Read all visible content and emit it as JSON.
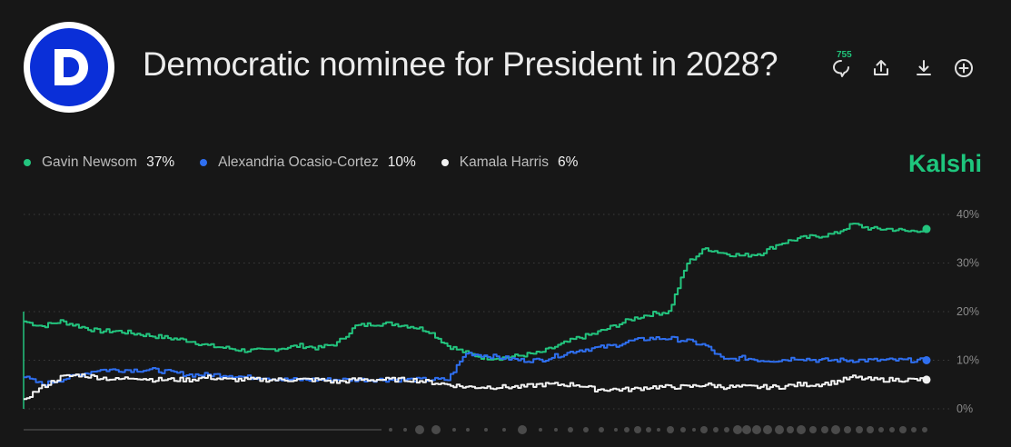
{
  "header": {
    "title": "Democratic nominee for President in 2028?",
    "comment_count": "755",
    "logo_letter": "D",
    "icons": [
      "comment-icon",
      "share-icon",
      "download-icon",
      "add-icon"
    ]
  },
  "brand": "Kalshi",
  "colors": {
    "newsom": "#23c47e",
    "aoc": "#2f6ff0",
    "harris": "#f2f2f2",
    "brand": "#1ec67d",
    "logo": "#0a2fd8"
  },
  "chart_data": {
    "type": "line",
    "ylim": [
      0,
      40
    ],
    "y_ticks": [
      40,
      30,
      20,
      10,
      0
    ],
    "y_tick_labels": [
      "40%",
      "30%",
      "20%",
      "10%",
      "0%"
    ],
    "grid": true,
    "legend_position": "top-left",
    "series": [
      {
        "name": "Gavin Newsom",
        "label": "37%",
        "color": "#23c47e",
        "values": [
          18,
          17,
          18,
          17,
          16,
          16,
          15.5,
          15,
          14.5,
          14,
          13,
          12.5,
          12,
          12,
          12.5,
          13,
          12.5,
          13.5,
          17,
          17.5,
          17.5,
          17,
          16,
          13,
          11.5,
          10.5,
          10.5,
          11,
          11.5,
          13,
          14.5,
          15.5,
          17,
          18.5,
          19.5,
          20,
          30,
          33,
          32,
          31.5,
          32,
          34,
          35,
          35.5,
          36,
          38,
          37,
          37,
          36.5,
          37
        ]
      },
      {
        "name": "Alexandria Ocasio-Cortez",
        "label": "10%",
        "color": "#2f6ff0",
        "values": [
          6.5,
          5,
          6,
          7,
          8,
          8,
          8,
          8,
          7.5,
          7,
          7,
          7,
          6.5,
          6.5,
          6,
          6,
          6,
          6,
          6,
          6,
          6,
          6,
          6,
          6,
          11.5,
          11,
          10.5,
          10,
          10,
          11,
          12,
          12.5,
          13,
          14,
          14.5,
          14.5,
          14,
          13,
          10,
          10.5,
          10,
          10,
          10.5,
          10,
          10,
          10,
          10,
          10,
          10,
          10
        ]
      },
      {
        "name": "Kamala Harris",
        "label": "6%",
        "color": "#f2f2f2",
        "values": [
          2,
          4.5,
          6.5,
          7,
          6.5,
          6,
          6.5,
          6,
          6,
          6,
          6.5,
          6,
          6,
          6,
          6,
          6,
          6,
          5.5,
          6,
          6,
          6,
          6,
          5.5,
          5,
          4.5,
          4.5,
          4.5,
          4.5,
          5,
          5,
          5,
          4,
          4,
          4,
          4.5,
          4.5,
          4.5,
          5,
          4.5,
          4.5,
          4.5,
          4.5,
          5,
          5,
          5.5,
          6.5,
          6,
          6,
          6,
          6
        ]
      }
    ]
  }
}
